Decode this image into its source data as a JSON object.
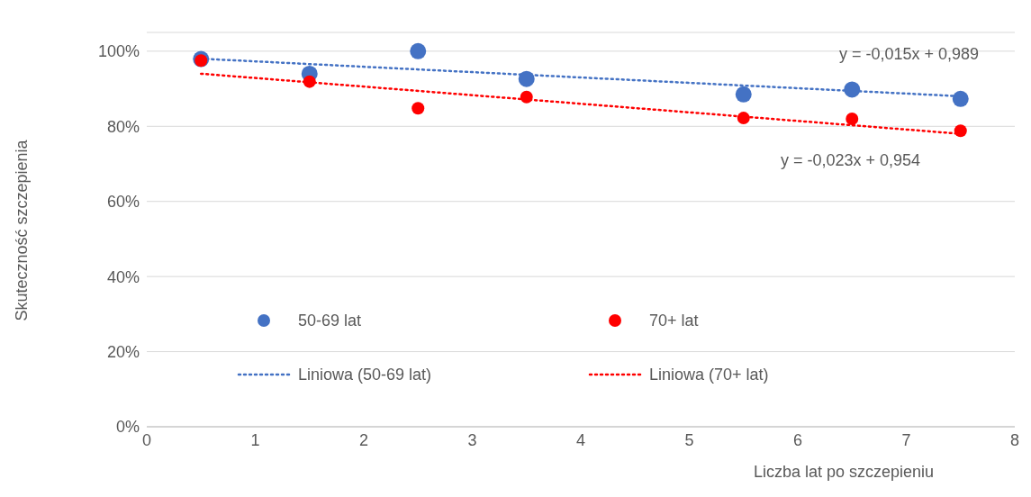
{
  "chart_data": {
    "type": "scatter",
    "xlabel": "Liczba lat po szczepieniu",
    "ylabel": "Skuteczność szczepienia",
    "xlim": [
      0,
      8
    ],
    "xticks": [
      0,
      1,
      2,
      3,
      4,
      5,
      6,
      7,
      8
    ],
    "ylim": [
      0,
      1.05
    ],
    "yticks": [
      {
        "value": 0,
        "label": "0%"
      },
      {
        "value": 0.2,
        "label": "20%"
      },
      {
        "value": 0.4,
        "label": "40%"
      },
      {
        "value": 0.6,
        "label": "60%"
      },
      {
        "value": 0.8,
        "label": "80%"
      },
      {
        "value": 1,
        "label": "100%"
      }
    ],
    "grid": "y",
    "legend": "bottom",
    "marker": "circle",
    "series": [
      {
        "name": "50-69 lat",
        "color": "#4472c4",
        "x": [
          0.5,
          1.5,
          2.5,
          3.5,
          5.5,
          6.5,
          7.5
        ],
        "values": [
          0.979,
          0.94,
          1.0,
          0.926,
          0.885,
          0.898,
          0.873
        ]
      },
      {
        "name": "70+ lat",
        "color": "#ff0000",
        "x": [
          0.5,
          1.5,
          2.5,
          3.5,
          5.5,
          6.5,
          7.5
        ],
        "values": [
          0.975,
          0.919,
          0.848,
          0.878,
          0.822,
          0.82,
          0.788
        ]
      },
      {
        "name": "Liniowa (50-69 lat)",
        "type": "line",
        "line_style": "dotted",
        "marker": "none",
        "color": "#4472c4",
        "x": [
          0.5,
          7.5
        ],
        "values": [
          0.98,
          0.88
        ]
      },
      {
        "name": "Liniowa (70+ lat)",
        "type": "line",
        "line_style": "dotted",
        "marker": "none",
        "color": "#ff0000",
        "x": [
          0.5,
          7.5
        ],
        "values": [
          0.94,
          0.78
        ]
      }
    ],
    "annotations": [
      "y = -0,015x + 0,989",
      "y = -0,023x + 0,954"
    ]
  }
}
